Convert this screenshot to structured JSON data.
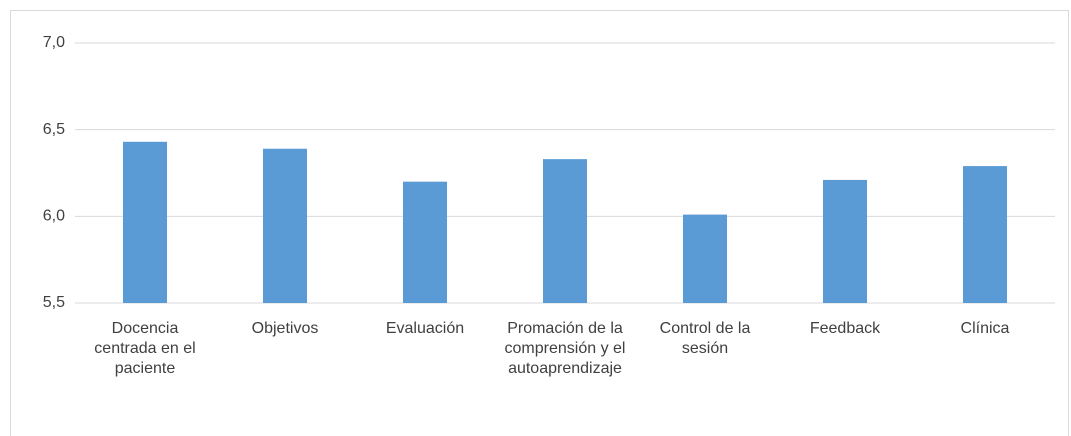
{
  "chart_data": {
    "type": "bar",
    "categories": [
      "Docencia centrada en el paciente",
      "Objetivos",
      "Evaluación",
      "Promación de la comprensión y el autoaprendizaje",
      "Control de la sesión",
      "Feedback",
      "Clínica"
    ],
    "values": [
      6.43,
      6.39,
      6.2,
      6.33,
      6.01,
      6.21,
      6.29
    ],
    "color": "#5b9bd5",
    "ylim": [
      5.5,
      7.0
    ],
    "yticks": [
      {
        "value": 5.5,
        "label": "5,5"
      },
      {
        "value": 6.0,
        "label": "6,0"
      },
      {
        "value": 6.5,
        "label": "6,5"
      },
      {
        "value": 7.0,
        "label": "7,0"
      }
    ],
    "grid": true
  }
}
